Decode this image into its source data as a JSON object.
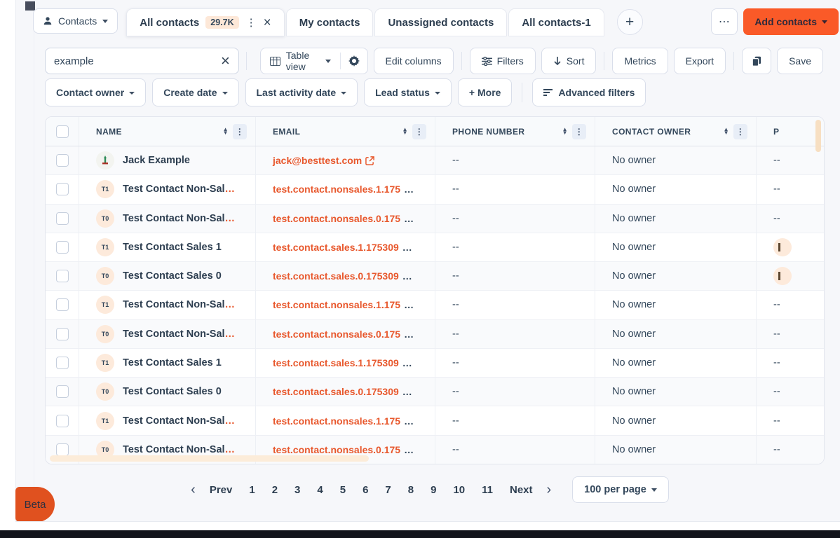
{
  "colors": {
    "accent": "#fa5a28",
    "link": "#e8582d",
    "badge_bg": "#fde8d8",
    "scrollbar": "#f7dfc2"
  },
  "header": {
    "contacts_menu_label": "Contacts",
    "tabs": [
      {
        "label": "All contacts",
        "badge": "29.7K",
        "active": true,
        "icons": [
          "kebab-menu-icon",
          "close-icon"
        ]
      },
      {
        "label": "My contacts",
        "active": false
      },
      {
        "label": "Unassigned contacts",
        "active": false
      },
      {
        "label": "All contacts-1",
        "active": false
      }
    ],
    "add_tab_icon": "plus-icon",
    "more_actions_icon": "ellipsis-icon",
    "add_contacts_label": "Add contacts"
  },
  "toolbar": {
    "search": {
      "value": "example",
      "clear_icon": "close-icon"
    },
    "view_selector": {
      "label": "Table view",
      "icons": [
        "table-view-icon",
        "gear-icon"
      ]
    },
    "buttons": [
      {
        "label": "Edit columns"
      },
      {
        "sep": true
      },
      {
        "label": "Filters",
        "icon": "filter-sliders-icon"
      },
      {
        "label": "Sort",
        "icon": "arrow-down-icon"
      },
      {
        "sep": true
      },
      {
        "label": "Metrics"
      },
      {
        "label": "Export"
      },
      {
        "sep": true
      },
      {
        "icon": "copy-icon",
        "name": "copy-view-button"
      },
      {
        "label": "Save"
      }
    ]
  },
  "filters": {
    "chips": [
      "Contact owner",
      "Create date",
      "Last activity date",
      "Lead status"
    ],
    "more_label": "+ More",
    "advanced_label": "Advanced filters",
    "advanced_icon": "advanced-filter-icon"
  },
  "table": {
    "columns": [
      {
        "label": "NAME",
        "controls": true
      },
      {
        "label": "EMAIL",
        "controls": true
      },
      {
        "label": "PHONE NUMBER",
        "controls": true
      },
      {
        "label": "CONTACT OWNER",
        "controls": true
      },
      {
        "label": "P",
        "controls": false
      }
    ],
    "rows": [
      {
        "avatar": "logo",
        "name": "Jack Example",
        "name_truncated": false,
        "email": "jack@besttest.com",
        "email_truncated": false,
        "email_external": true,
        "phone": "--",
        "owner": "No owner",
        "last": "--",
        "last_badge": false
      },
      {
        "avatar": "T1",
        "name": "Test Contact Non-Sal",
        "name_truncated": true,
        "email": "test.contact.nonsales.1.175",
        "email_truncated": true,
        "email_external": false,
        "phone": "--",
        "owner": "No owner",
        "last": "--",
        "last_badge": false
      },
      {
        "avatar": "T0",
        "name": "Test Contact Non-Sal",
        "name_truncated": true,
        "email": "test.contact.nonsales.0.175",
        "email_truncated": true,
        "email_external": false,
        "phone": "--",
        "owner": "No owner",
        "last": "--",
        "last_badge": false
      },
      {
        "avatar": "T1",
        "name": "Test Contact Sales 1",
        "name_truncated": false,
        "email": "test.contact.sales.1.175309",
        "email_truncated": true,
        "email_external": false,
        "phone": "--",
        "owner": "No owner",
        "last": "",
        "last_badge": true
      },
      {
        "avatar": "T0",
        "name": "Test Contact Sales 0",
        "name_truncated": false,
        "email": "test.contact.sales.0.175309",
        "email_truncated": true,
        "email_external": false,
        "phone": "--",
        "owner": "No owner",
        "last": "",
        "last_badge": true
      },
      {
        "avatar": "T1",
        "name": "Test Contact Non-Sal",
        "name_truncated": true,
        "email": "test.contact.nonsales.1.175",
        "email_truncated": true,
        "email_external": false,
        "phone": "--",
        "owner": "No owner",
        "last": "--",
        "last_badge": false
      },
      {
        "avatar": "T0",
        "name": "Test Contact Non-Sal",
        "name_truncated": true,
        "email": "test.contact.nonsales.0.175",
        "email_truncated": true,
        "email_external": false,
        "phone": "--",
        "owner": "No owner",
        "last": "--",
        "last_badge": false
      },
      {
        "avatar": "T1",
        "name": "Test Contact Sales 1",
        "name_truncated": false,
        "email": "test.contact.sales.1.175309",
        "email_truncated": true,
        "email_external": false,
        "phone": "--",
        "owner": "No owner",
        "last": "--",
        "last_badge": false
      },
      {
        "avatar": "T0",
        "name": "Test Contact Sales 0",
        "name_truncated": false,
        "email": "test.contact.sales.0.175309",
        "email_truncated": true,
        "email_external": false,
        "phone": "--",
        "owner": "No owner",
        "last": "--",
        "last_badge": false
      },
      {
        "avatar": "T1",
        "name": "Test Contact Non-Sal",
        "name_truncated": true,
        "email": "test.contact.nonsales.1.175",
        "email_truncated": true,
        "email_external": false,
        "phone": "--",
        "owner": "No owner",
        "last": "--",
        "last_badge": false
      },
      {
        "avatar": "T0",
        "name": "Test Contact Non-Sal",
        "name_truncated": true,
        "email": "test.contact.nonsales.0.175",
        "email_truncated": true,
        "email_external": false,
        "phone": "--",
        "owner": "No owner",
        "last": "--",
        "last_badge": false
      }
    ]
  },
  "pagination": {
    "prev_label": "Prev",
    "next_label": "Next",
    "pages": [
      "1",
      "2",
      "3",
      "4",
      "5",
      "6",
      "7",
      "8",
      "9",
      "10",
      "11"
    ],
    "per_page_label": "100 per page"
  },
  "beta_label": "Beta"
}
